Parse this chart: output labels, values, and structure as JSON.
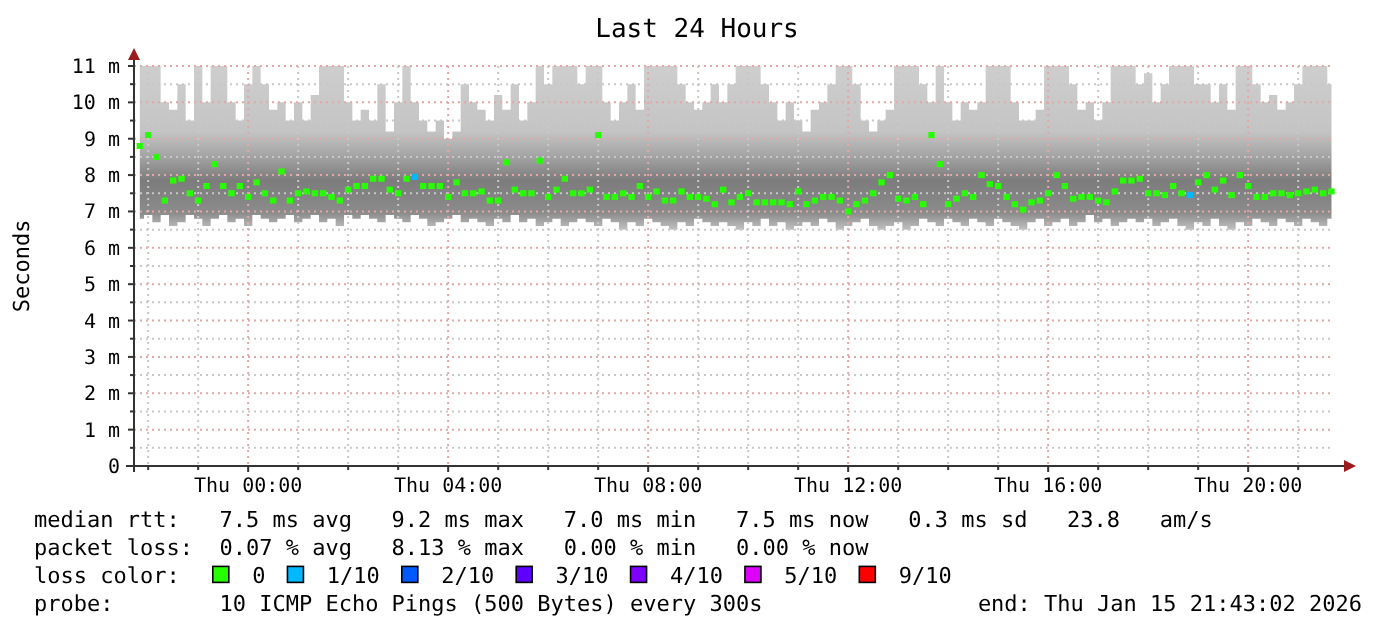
{
  "chart_data": {
    "type": "scatter",
    "title": "Last 24 Hours",
    "ylabel": "Seconds",
    "marker": "square",
    "grid": true,
    "legend": "bottom",
    "legend_title": "loss color:",
    "xlim": [
      "2026-01-14T21:43",
      "2026-01-15T21:43"
    ],
    "ylim": [
      0,
      11
    ],
    "yticks": [
      0,
      {
        "value": 0.5,
        "label": null
      },
      {
        "value": 1,
        "label": "1 m"
      },
      {
        "value": 1.5,
        "label": null
      },
      {
        "value": 2,
        "label": "2 m"
      },
      {
        "value": 2.5,
        "label": null
      },
      {
        "value": 3,
        "label": "3 m"
      },
      {
        "value": 3.5,
        "label": null
      },
      {
        "value": 4,
        "label": "4 m"
      },
      {
        "value": 4.5,
        "label": null
      },
      {
        "value": 5,
        "label": "5 m"
      },
      {
        "value": 5.5,
        "label": null
      },
      {
        "value": 6,
        "label": "6 m"
      },
      {
        "value": 6.5,
        "label": null
      },
      {
        "value": 7,
        "label": "7 m"
      },
      {
        "value": 7.5,
        "label": null
      },
      {
        "value": 8,
        "label": "8 m"
      },
      {
        "value": 8.5,
        "label": null
      },
      {
        "value": 9,
        "label": "9 m"
      },
      {
        "value": 9.5,
        "label": null
      },
      {
        "value": 10,
        "label": "10 m"
      },
      {
        "value": 10.5,
        "label": null
      },
      {
        "value": 11,
        "label": "11 m"
      }
    ],
    "xticks": [
      {
        "value": "2026-01-14T22:00",
        "label": null
      },
      {
        "value": "2026-01-14T23:00",
        "label": null
      },
      {
        "value": "2026-01-15T00:00",
        "label": "Thu 00:00"
      },
      {
        "value": "2026-01-15T01:00",
        "label": null
      },
      {
        "value": "2026-01-15T02:00",
        "label": null
      },
      {
        "value": "2026-01-15T03:00",
        "label": null
      },
      {
        "value": "2026-01-15T04:00",
        "label": "Thu 04:00"
      },
      {
        "value": "2026-01-15T05:00",
        "label": null
      },
      {
        "value": "2026-01-15T06:00",
        "label": null
      },
      {
        "value": "2026-01-15T07:00",
        "label": null
      },
      {
        "value": "2026-01-15T08:00",
        "label": "Thu 08:00"
      },
      {
        "value": "2026-01-15T09:00",
        "label": null
      },
      {
        "value": "2026-01-15T10:00",
        "label": null
      },
      {
        "value": "2026-01-15T11:00",
        "label": null
      },
      {
        "value": "2026-01-15T12:00",
        "label": "Thu 12:00"
      },
      {
        "value": "2026-01-15T13:00",
        "label": null
      },
      {
        "value": "2026-01-15T14:00",
        "label": null
      },
      {
        "value": "2026-01-15T15:00",
        "label": null
      },
      {
        "value": "2026-01-15T16:00",
        "label": "Thu 16:00"
      },
      {
        "value": "2026-01-15T17:00",
        "label": null
      },
      {
        "value": "2026-01-15T18:00",
        "label": null
      },
      {
        "value": "2026-01-15T19:00",
        "label": null
      },
      {
        "value": "2026-01-15T20:00",
        "label": "Thu 20:00"
      },
      {
        "value": "2026-01-15T21:00",
        "label": null
      }
    ],
    "x": [
      "2026-01-14T21:50",
      "2026-01-14T22:00",
      "2026-01-14T22:10",
      "2026-01-14T22:20",
      "2026-01-14T22:30",
      "2026-01-14T22:40",
      "2026-01-14T22:50",
      "2026-01-14T23:00",
      "2026-01-14T23:10",
      "2026-01-14T23:20",
      "2026-01-14T23:30",
      "2026-01-14T23:40",
      "2026-01-14T23:50",
      "2026-01-15T00:00",
      "2026-01-15T00:10",
      "2026-01-15T00:20",
      "2026-01-15T00:30",
      "2026-01-15T00:40",
      "2026-01-15T00:50",
      "2026-01-15T01:00",
      "2026-01-15T01:10",
      "2026-01-15T01:20",
      "2026-01-15T01:30",
      "2026-01-15T01:40",
      "2026-01-15T01:50",
      "2026-01-15T02:00",
      "2026-01-15T02:10",
      "2026-01-15T02:20",
      "2026-01-15T02:30",
      "2026-01-15T02:40",
      "2026-01-15T02:50",
      "2026-01-15T03:00",
      "2026-01-15T03:10",
      "2026-01-15T03:20",
      "2026-01-15T03:30",
      "2026-01-15T03:40",
      "2026-01-15T03:50",
      "2026-01-15T04:00",
      "2026-01-15T04:10",
      "2026-01-15T04:20",
      "2026-01-15T04:30",
      "2026-01-15T04:40",
      "2026-01-15T04:50",
      "2026-01-15T05:00",
      "2026-01-15T05:10",
      "2026-01-15T05:20",
      "2026-01-15T05:30",
      "2026-01-15T05:40",
      "2026-01-15T05:50",
      "2026-01-15T06:00",
      "2026-01-15T06:10",
      "2026-01-15T06:20",
      "2026-01-15T06:30",
      "2026-01-15T06:40",
      "2026-01-15T06:50",
      "2026-01-15T07:00",
      "2026-01-15T07:10",
      "2026-01-15T07:20",
      "2026-01-15T07:30",
      "2026-01-15T07:40",
      "2026-01-15T07:50",
      "2026-01-15T08:00",
      "2026-01-15T08:10",
      "2026-01-15T08:20",
      "2026-01-15T08:30",
      "2026-01-15T08:40",
      "2026-01-15T08:50",
      "2026-01-15T09:00",
      "2026-01-15T09:10",
      "2026-01-15T09:20",
      "2026-01-15T09:30",
      "2026-01-15T09:40",
      "2026-01-15T09:50",
      "2026-01-15T10:00",
      "2026-01-15T10:10",
      "2026-01-15T10:20",
      "2026-01-15T10:30",
      "2026-01-15T10:40",
      "2026-01-15T10:50",
      "2026-01-15T11:00",
      "2026-01-15T11:10",
      "2026-01-15T11:20",
      "2026-01-15T11:30",
      "2026-01-15T11:40",
      "2026-01-15T11:50",
      "2026-01-15T12:00",
      "2026-01-15T12:10",
      "2026-01-15T12:20",
      "2026-01-15T12:30",
      "2026-01-15T12:40",
      "2026-01-15T12:50",
      "2026-01-15T13:00",
      "2026-01-15T13:10",
      "2026-01-15T13:20",
      "2026-01-15T13:30",
      "2026-01-15T13:40",
      "2026-01-15T13:50",
      "2026-01-15T14:00",
      "2026-01-15T14:10",
      "2026-01-15T14:20",
      "2026-01-15T14:30",
      "2026-01-15T14:40",
      "2026-01-15T14:50",
      "2026-01-15T15:00",
      "2026-01-15T15:10",
      "2026-01-15T15:20",
      "2026-01-15T15:30",
      "2026-01-15T15:40",
      "2026-01-15T15:50",
      "2026-01-15T16:00",
      "2026-01-15T16:10",
      "2026-01-15T16:20",
      "2026-01-15T16:30",
      "2026-01-15T16:40",
      "2026-01-15T16:50",
      "2026-01-15T17:00",
      "2026-01-15T17:10",
      "2026-01-15T17:20",
      "2026-01-15T17:30",
      "2026-01-15T17:40",
      "2026-01-15T17:50",
      "2026-01-15T18:00",
      "2026-01-15T18:10",
      "2026-01-15T18:20",
      "2026-01-15T18:30",
      "2026-01-15T18:40",
      "2026-01-15T18:50",
      "2026-01-15T19:00",
      "2026-01-15T19:10",
      "2026-01-15T19:20",
      "2026-01-15T19:30",
      "2026-01-15T19:40",
      "2026-01-15T19:50",
      "2026-01-15T20:00",
      "2026-01-15T20:10",
      "2026-01-15T20:20",
      "2026-01-15T20:30",
      "2026-01-15T20:40",
      "2026-01-15T20:50",
      "2026-01-15T21:00",
      "2026-01-15T21:10",
      "2026-01-15T21:20",
      "2026-01-15T21:30",
      "2026-01-15T21:40"
    ],
    "series": [
      {
        "name": "0",
        "color": "#26ff00",
        "values": [
          8.8,
          9.1,
          8.5,
          7.3,
          7.85,
          7.9,
          7.5,
          7.3,
          7.7,
          8.3,
          7.7,
          7.5,
          7.7,
          7.4,
          7.8,
          7.5,
          7.3,
          8.1,
          7.3,
          7.5,
          7.55,
          7.5,
          7.5,
          7.4,
          7.3,
          7.6,
          7.7,
          7.7,
          7.9,
          7.9,
          7.6,
          7.5,
          7.9,
          null,
          7.7,
          7.7,
          7.7,
          7.4,
          7.8,
          7.5,
          7.5,
          7.55,
          7.3,
          7.3,
          8.35,
          7.6,
          7.5,
          7.5,
          8.4,
          7.4,
          7.6,
          7.9,
          7.5,
          7.5,
          7.6,
          9.1,
          7.4,
          7.4,
          7.5,
          7.4,
          7.7,
          7.4,
          7.55,
          7.3,
          7.3,
          7.55,
          7.4,
          7.4,
          7.35,
          7.2,
          7.6,
          7.25,
          7.4,
          7.5,
          7.25,
          7.25,
          7.25,
          7.25,
          7.2,
          7.55,
          7.2,
          7.3,
          7.4,
          7.4,
          7.3,
          7.0,
          7.2,
          7.3,
          7.5,
          7.8,
          8.0,
          7.35,
          7.3,
          7.4,
          7.2,
          9.1,
          8.3,
          7.2,
          7.35,
          7.5,
          7.4,
          8.0,
          7.75,
          7.7,
          7.4,
          7.2,
          7.05,
          7.25,
          7.3,
          7.5,
          8.0,
          7.7,
          7.35,
          7.4,
          7.4,
          7.3,
          7.25,
          7.55,
          7.85,
          7.85,
          7.9,
          7.5,
          7.5,
          7.45,
          7.7,
          7.5,
          null,
          7.8,
          8.0,
          7.6,
          7.85,
          7.45,
          8.0,
          7.7,
          7.4,
          7.4,
          7.5,
          7.5,
          7.45,
          7.5,
          7.55,
          7.6,
          7.5,
          7.55
        ],
        "upper": [
          11,
          11,
          11,
          10,
          9.8,
          10.5,
          9.5,
          11,
          10,
          11,
          11,
          10,
          9.5,
          10.5,
          11,
          10.5,
          9.8,
          10,
          9.5,
          10,
          9.5,
          10.2,
          11,
          11,
          11,
          10,
          9.5,
          9.8,
          9.5,
          10.5,
          9.2,
          10,
          11,
          10,
          9.5,
          9.2,
          9.5,
          9,
          9.2,
          10.5,
          10,
          9.8,
          9.5,
          10.2,
          9.8,
          10.5,
          9.5,
          10,
          11,
          10.5,
          11,
          11,
          11,
          10.5,
          11,
          11,
          10,
          9.5,
          10,
          10.5,
          9.8,
          11,
          11,
          11,
          11,
          10.5,
          10,
          9.8,
          10,
          10.5,
          10,
          10.5,
          11,
          11,
          11,
          10.5,
          10,
          9.5,
          10,
          9.5,
          9.2,
          9.8,
          10,
          10.5,
          11,
          11,
          10.5,
          9.5,
          9.2,
          9.5,
          9.8,
          11,
          11,
          11,
          10.5,
          10,
          11,
          10,
          9.5,
          10,
          9.8,
          10,
          11,
          11,
          11,
          10,
          9.5,
          9.5,
          9.8,
          11,
          11,
          11,
          10.5,
          9.8,
          10,
          9.5,
          10,
          11,
          11,
          11,
          10.5,
          10.8,
          10,
          10.5,
          11,
          11,
          11,
          10.5,
          10.5,
          10,
          10.5,
          9.8,
          11,
          11,
          10.5,
          10,
          10.2,
          9.8,
          10,
          10.5,
          11,
          11,
          11,
          10.5
        ],
        "lower": [
          6.8,
          6.9,
          6.7,
          6.9,
          6.6,
          6.7,
          6.9,
          6.8,
          6.6,
          6.8,
          6.9,
          6.7,
          6.8,
          6.6,
          6.9,
          6.8,
          6.7,
          6.8,
          6.9,
          6.7,
          6.8,
          6.9,
          6.7,
          6.8,
          6.6,
          6.9,
          6.8,
          6.9,
          6.8,
          6.7,
          6.9,
          6.8,
          6.7,
          6.9,
          6.8,
          6.6,
          6.7,
          6.8,
          6.9,
          6.7,
          6.8,
          6.7,
          6.6,
          6.8,
          6.7,
          6.9,
          6.7,
          6.8,
          6.6,
          6.7,
          6.8,
          6.6,
          6.7,
          6.8,
          6.7,
          6.6,
          6.8,
          6.7,
          6.5,
          6.7,
          6.6,
          6.8,
          6.7,
          6.6,
          6.5,
          6.7,
          6.6,
          6.8,
          6.7,
          6.6,
          6.7,
          6.6,
          6.5,
          6.7,
          6.6,
          6.8,
          6.6,
          6.7,
          6.5,
          6.6,
          6.7,
          6.6,
          6.8,
          6.7,
          6.5,
          6.6,
          6.7,
          6.8,
          6.6,
          6.5,
          6.6,
          6.7,
          6.5,
          6.6,
          6.8,
          6.7,
          6.6,
          6.8,
          6.7,
          6.6,
          6.8,
          6.7,
          6.6,
          6.8,
          6.7,
          6.6,
          6.5,
          6.7,
          6.8,
          6.6,
          6.7,
          6.8,
          6.6,
          6.7,
          6.9,
          6.7,
          6.8,
          6.6,
          6.7,
          6.8,
          6.7,
          6.8,
          6.6,
          6.7,
          6.8,
          6.6,
          6.5,
          6.7,
          6.6,
          6.8,
          6.6,
          6.5,
          6.7,
          6.6,
          6.8,
          6.7,
          6.6,
          6.8,
          6.7,
          6.6,
          6.8,
          6.7,
          6.6,
          6.8
        ]
      },
      {
        "name": "1/10",
        "color": "#00b8ff",
        "x": [
          "2026-01-15T03:20",
          "2026-01-15T18:50"
        ],
        "values": [
          7.95,
          7.45
        ]
      },
      {
        "name": "2/10",
        "color": "#0059ff",
        "values": [
          null,
          null,
          null,
          null,
          null,
          null,
          null,
          null,
          null,
          null,
          null,
          null,
          null,
          null,
          null,
          null,
          null,
          null,
          null,
          null,
          null,
          null,
          null,
          null,
          null,
          null,
          null,
          null,
          null,
          null,
          null,
          null,
          null,
          null,
          null,
          null,
          null,
          null,
          null,
          null,
          null,
          null,
          null,
          null,
          null,
          null,
          null,
          null,
          null,
          null,
          null,
          null,
          null,
          null,
          null,
          null,
          null,
          null,
          null,
          null,
          null,
          null,
          null,
          null,
          null,
          null,
          null,
          null,
          null,
          null,
          null,
          null,
          null,
          null,
          null,
          null,
          null,
          null,
          null,
          null,
          null,
          null,
          null,
          null,
          null,
          null,
          null,
          null,
          null,
          null,
          null,
          null,
          null,
          null,
          null,
          null,
          null,
          null,
          null,
          null,
          null,
          null,
          null,
          null,
          null,
          null,
          null,
          null,
          null,
          null,
          null,
          null,
          null,
          null,
          null,
          null,
          null,
          null,
          null,
          null,
          null,
          null,
          null,
          null,
          null,
          null,
          null,
          null,
          null,
          null,
          null,
          null,
          null,
          null,
          null,
          null,
          null,
          null,
          null,
          null,
          null,
          null,
          null,
          null
        ]
      },
      {
        "name": "3/10",
        "color": "#5e00ff",
        "values": [
          null,
          null,
          null,
          null,
          null,
          null,
          null,
          null,
          null,
          null,
          null,
          null,
          null,
          null,
          null,
          null,
          null,
          null,
          null,
          null,
          null,
          null,
          null,
          null,
          null,
          null,
          null,
          null,
          null,
          null,
          null,
          null,
          null,
          null,
          null,
          null,
          null,
          null,
          null,
          null,
          null,
          null,
          null,
          null,
          null,
          null,
          null,
          null,
          null,
          null,
          null,
          null,
          null,
          null,
          null,
          null,
          null,
          null,
          null,
          null,
          null,
          null,
          null,
          null,
          null,
          null,
          null,
          null,
          null,
          null,
          null,
          null,
          null,
          null,
          null,
          null,
          null,
          null,
          null,
          null,
          null,
          null,
          null,
          null,
          null,
          null,
          null,
          null,
          null,
          null,
          null,
          null,
          null,
          null,
          null,
          null,
          null,
          null,
          null,
          null,
          null,
          null,
          null,
          null,
          null,
          null,
          null,
          null,
          null,
          null,
          null,
          null,
          null,
          null,
          null,
          null,
          null,
          null,
          null,
          null,
          null,
          null,
          null,
          null,
          null,
          null,
          null,
          null,
          null,
          null,
          null,
          null,
          null,
          null,
          null,
          null,
          null,
          null,
          null,
          null,
          null,
          null,
          null,
          null
        ]
      },
      {
        "name": "4/10",
        "color": "#7e00ff",
        "values": [
          null,
          null,
          null,
          null,
          null,
          null,
          null,
          null,
          null,
          null,
          null,
          null,
          null,
          null,
          null,
          null,
          null,
          null,
          null,
          null,
          null,
          null,
          null,
          null,
          null,
          null,
          null,
          null,
          null,
          null,
          null,
          null,
          null,
          null,
          null,
          null,
          null,
          null,
          null,
          null,
          null,
          null,
          null,
          null,
          null,
          null,
          null,
          null,
          null,
          null,
          null,
          null,
          null,
          null,
          null,
          null,
          null,
          null,
          null,
          null,
          null,
          null,
          null,
          null,
          null,
          null,
          null,
          null,
          null,
          null,
          null,
          null,
          null,
          null,
          null,
          null,
          null,
          null,
          null,
          null,
          null,
          null,
          null,
          null,
          null,
          null,
          null,
          null,
          null,
          null,
          null,
          null,
          null,
          null,
          null,
          null,
          null,
          null,
          null,
          null,
          null,
          null,
          null,
          null,
          null,
          null,
          null,
          null,
          null,
          null,
          null,
          null,
          null,
          null,
          null,
          null,
          null,
          null,
          null,
          null,
          null,
          null,
          null,
          null,
          null,
          null,
          null,
          null,
          null,
          null,
          null,
          null,
          null,
          null,
          null,
          null,
          null,
          null,
          null,
          null,
          null,
          null,
          null,
          null
        ]
      },
      {
        "name": "5/10",
        "color": "#dd00ff",
        "values": [
          null,
          null,
          null,
          null,
          null,
          null,
          null,
          null,
          null,
          null,
          null,
          null,
          null,
          null,
          null,
          null,
          null,
          null,
          null,
          null,
          null,
          null,
          null,
          null,
          null,
          null,
          null,
          null,
          null,
          null,
          null,
          null,
          null,
          null,
          null,
          null,
          null,
          null,
          null,
          null,
          null,
          null,
          null,
          null,
          null,
          null,
          null,
          null,
          null,
          null,
          null,
          null,
          null,
          null,
          null,
          null,
          null,
          null,
          null,
          null,
          null,
          null,
          null,
          null,
          null,
          null,
          null,
          null,
          null,
          null,
          null,
          null,
          null,
          null,
          null,
          null,
          null,
          null,
          null,
          null,
          null,
          null,
          null,
          null,
          null,
          null,
          null,
          null,
          null,
          null,
          null,
          null,
          null,
          null,
          null,
          null,
          null,
          null,
          null,
          null,
          null,
          null,
          null,
          null,
          null,
          null,
          null,
          null,
          null,
          null,
          null,
          null,
          null,
          null,
          null,
          null,
          null,
          null,
          null,
          null,
          null,
          null,
          null,
          null,
          null,
          null,
          null,
          null,
          null,
          null,
          null,
          null,
          null,
          null,
          null,
          null,
          null,
          null,
          null,
          null,
          null,
          null,
          null,
          null
        ]
      },
      {
        "name": "9/10",
        "color": "#ff0000",
        "values": [
          null,
          null,
          null,
          null,
          null,
          null,
          null,
          null,
          null,
          null,
          null,
          null,
          null,
          null,
          null,
          null,
          null,
          null,
          null,
          null,
          null,
          null,
          null,
          null,
          null,
          null,
          null,
          null,
          null,
          null,
          null,
          null,
          null,
          null,
          null,
          null,
          null,
          null,
          null,
          null,
          null,
          null,
          null,
          null,
          null,
          null,
          null,
          null,
          null,
          null,
          null,
          null,
          null,
          null,
          null,
          null,
          null,
          null,
          null,
          null,
          null,
          null,
          null,
          null,
          null,
          null,
          null,
          null,
          null,
          null,
          null,
          null,
          null,
          null,
          null,
          null,
          null,
          null,
          null,
          null,
          null,
          null,
          null,
          null,
          null,
          null,
          null,
          null,
          null,
          null,
          null,
          null,
          null,
          null,
          null,
          null,
          null,
          null,
          null,
          null,
          null,
          null,
          null,
          null,
          null,
          null,
          null,
          null,
          null,
          null,
          null,
          null,
          null,
          null,
          null,
          null,
          null,
          null,
          null,
          null,
          null,
          null,
          null,
          null,
          null,
          null,
          null,
          null,
          null,
          null,
          null,
          null,
          null,
          null,
          null,
          null,
          null,
          null,
          null,
          null,
          null,
          null,
          null,
          null
        ]
      }
    ],
    "annotations": [
      "median rtt:   7.5 ms avg   9.2 ms max   7.0 ms min   7.5 ms now   0.3 ms sd   23.8   am/s",
      "packet loss:  0.07 % avg   8.13 % max   0.00 % min   0.00 % now",
      "probe:        10 ICMP Echo Pings (500 Bytes) every 300s",
      "end: Thu Jan 15 21:43:02 2026"
    ]
  }
}
